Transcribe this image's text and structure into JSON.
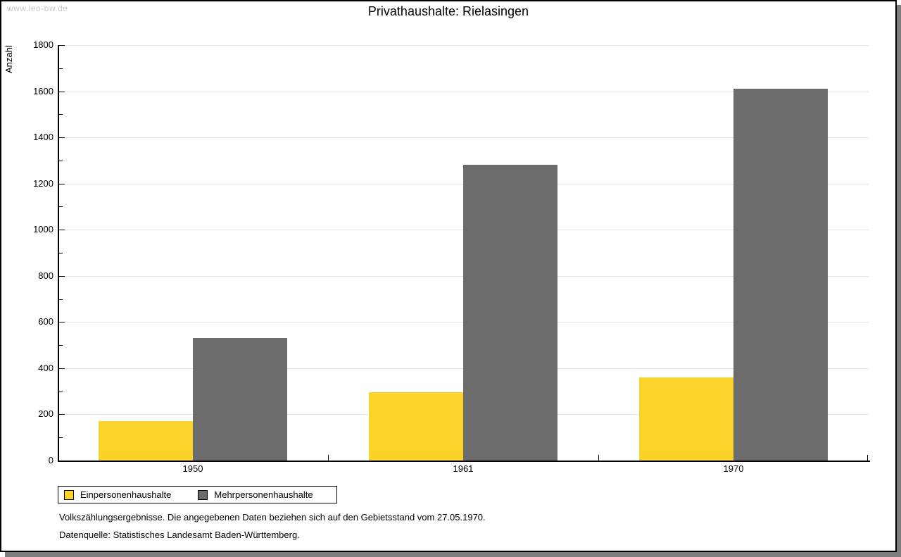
{
  "watermark": "www.leo-bw.de",
  "title": "Privathaushalte: Rielasingen",
  "chart_data": {
    "type": "bar",
    "title": "Privathaushalte: Rielasingen",
    "xlabel": "",
    "ylabel": "Anzahl",
    "categories": [
      "1950",
      "1961",
      "1970"
    ],
    "series": [
      {
        "name": "Einpersonenhaushalte",
        "color": "#FBD32B",
        "values": [
          170,
          295,
          360
        ]
      },
      {
        "name": "Mehrpersonenhaushalte",
        "color": "#6C6C6C",
        "values": [
          532,
          1280,
          1610
        ]
      }
    ],
    "ylim": [
      0,
      1800
    ],
    "ytick_step": 200,
    "minor_tick_step": 100,
    "grid": true,
    "legend_position": "bottom-left"
  },
  "footnotes": {
    "line1": "Volkszählungsergebnisse. Die angegebenen Daten beziehen sich auf den Gebietsstand vom 27.05.1970.",
    "line2": "Datenquelle: Statistisches Landesamt Baden-Württemberg."
  },
  "colors": {
    "series1": "#FBD32B",
    "series2": "#6C6C6C",
    "gridline": "#e3e3e3",
    "watermark": "#c8c8c8",
    "frame_shadow": "#7d7d7d"
  }
}
